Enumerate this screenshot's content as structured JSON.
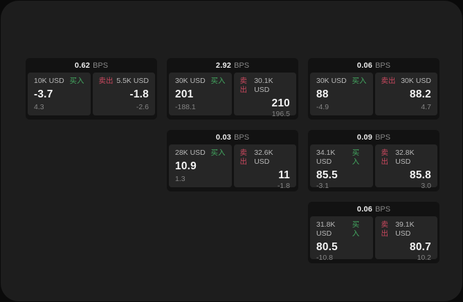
{
  "labels": {
    "bps": "BPS",
    "buy": "买入",
    "sell": "卖出"
  },
  "colors": {
    "background": "#0a0a0a",
    "surface": "#1d1d1d",
    "card": "#121212",
    "panel": "#262626",
    "buy_green": "#43a860",
    "sell_red": "#c8485e"
  },
  "cards": [
    {
      "bps": "0.62",
      "buy": {
        "amount": "10K USD",
        "value": "-3.7",
        "sub": "4.3"
      },
      "sell": {
        "amount": "5.5K USD",
        "value": "-1.8",
        "sub": "-2.6"
      }
    },
    {
      "bps": "2.92",
      "buy": {
        "amount": "30K USD",
        "value": "201",
        "sub": "-188.1"
      },
      "sell": {
        "amount": "30.1K USD",
        "value": "210",
        "sub": "196.5"
      }
    },
    {
      "bps": "0.06",
      "buy": {
        "amount": "30K USD",
        "value": "88",
        "sub": "-4.9"
      },
      "sell": {
        "amount": "30K USD",
        "value": "88.2",
        "sub": "4.7"
      }
    },
    {
      "bps": "0.03",
      "buy": {
        "amount": "28K USD",
        "value": "10.9",
        "sub": "1.3"
      },
      "sell": {
        "amount": "32.6K USD",
        "value": "11",
        "sub": "-1.8"
      }
    },
    {
      "bps": "0.09",
      "buy": {
        "amount": "34.1K USD",
        "value": "85.5",
        "sub": "-3.1"
      },
      "sell": {
        "amount": "32.8K USD",
        "value": "85.8",
        "sub": "3.0"
      }
    },
    {
      "bps": "0.06",
      "buy": {
        "amount": "31.8K USD",
        "value": "80.5",
        "sub": "-10.8"
      },
      "sell": {
        "amount": "39.1K USD",
        "value": "80.7",
        "sub": "10.2"
      }
    }
  ]
}
